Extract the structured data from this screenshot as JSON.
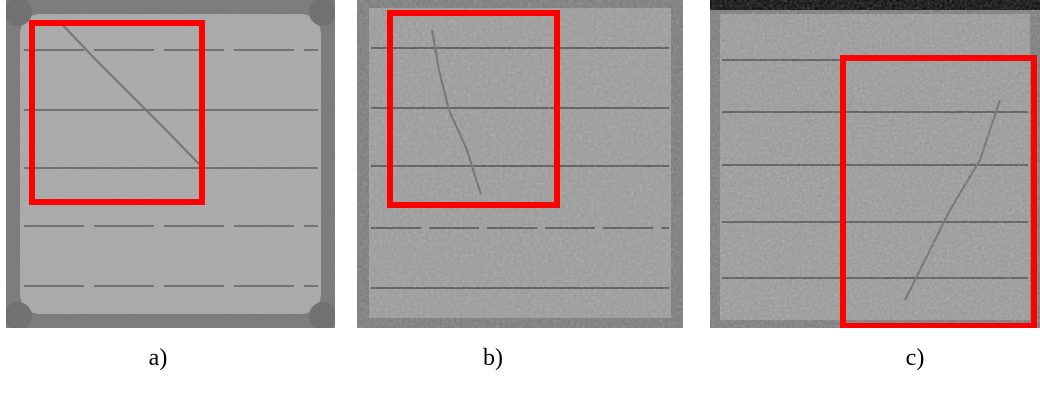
{
  "figure": {
    "panels": [
      {
        "caption": "a)",
        "cell_style": "rounded-corner",
        "highlight_color": "#ff0000"
      },
      {
        "caption": "b)",
        "cell_style": "square-mottled",
        "highlight_color": "#ff0000"
      },
      {
        "caption": "c)",
        "cell_style": "square-mottled-top-band",
        "highlight_color": "#ff0000"
      }
    ],
    "background": "#ffffff"
  }
}
